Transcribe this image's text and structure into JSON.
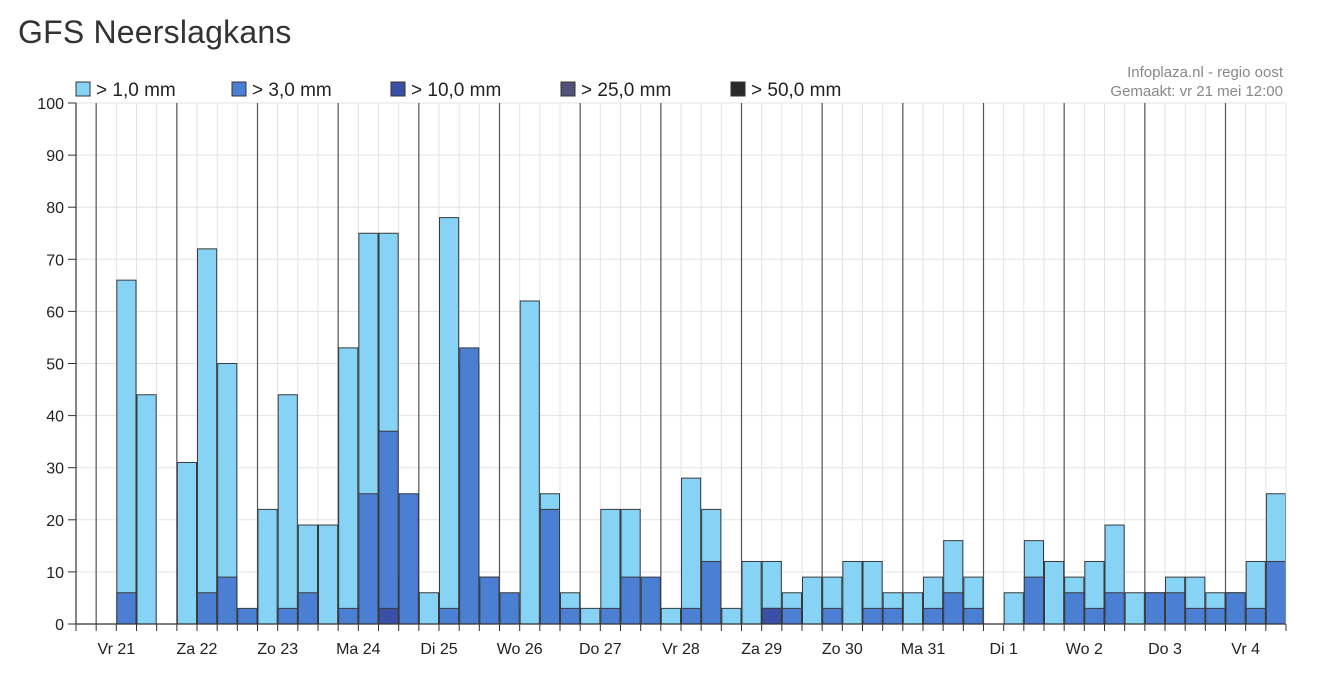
{
  "header": {
    "title": "GFS Neerslagkans"
  },
  "credits": {
    "line1": "Infoplaza.nl - regio oost",
    "line2": "Gemaakt: vr 21 mei 12:00"
  },
  "chart_data": {
    "type": "bar",
    "title": "GFS Neerslagkans",
    "ylim": [
      0,
      100
    ],
    "yticks": [
      0,
      10,
      20,
      30,
      40,
      50,
      60,
      70,
      80,
      90,
      100
    ],
    "grid": true,
    "legend_position": "top",
    "days": [
      "Vr 21",
      "Za 22",
      "Zo 23",
      "Ma 24",
      "Di 25",
      "Wo 26",
      "Do 27",
      "Vr 28",
      "Za 29",
      "Zo 30",
      "Ma 31",
      "Di 1",
      "Wo 2",
      "Do 3",
      "Vr 4"
    ],
    "series": [
      {
        "name": "> 1,0 mm",
        "color": "#87d3f5",
        "values": [
          0,
          66,
          44,
          0,
          31,
          72,
          50,
          0,
          22,
          44,
          19,
          19,
          53,
          75,
          75,
          9,
          6,
          78,
          50,
          9,
          3,
          62,
          25,
          6,
          3,
          22,
          22,
          0,
          3,
          28,
          22,
          3,
          12,
          12,
          6,
          9,
          9,
          12,
          12,
          6,
          6,
          9,
          16,
          9,
          0,
          6,
          16,
          12,
          9,
          12,
          19,
          6,
          6,
          9,
          9,
          6,
          6,
          12,
          25
        ]
      },
      {
        "name": "> 3,0 mm",
        "color": "#4b7fd4",
        "values": [
          0,
          6,
          0,
          0,
          0,
          6,
          9,
          3,
          0,
          3,
          6,
          0,
          3,
          25,
          37,
          25,
          0,
          3,
          53,
          9,
          6,
          0,
          22,
          3,
          0,
          3,
          9,
          9,
          0,
          3,
          12,
          0,
          0,
          3,
          3,
          0,
          3,
          0,
          3,
          3,
          0,
          3,
          6,
          3,
          0,
          0,
          9,
          0,
          6,
          3,
          6,
          0,
          6,
          6,
          3,
          3,
          6,
          3,
          12
        ]
      },
      {
        "name": "> 10,0 mm",
        "color": "#3a4fa6",
        "values": [
          0,
          0,
          0,
          0,
          0,
          0,
          0,
          0,
          0,
          0,
          0,
          0,
          0,
          0,
          3,
          0,
          0,
          0,
          0,
          0,
          0,
          0,
          0,
          0,
          0,
          0,
          0,
          0,
          0,
          0,
          0,
          0,
          0,
          3,
          0,
          0,
          0,
          0,
          0,
          0,
          0,
          0,
          0,
          0,
          0,
          0,
          0,
          0,
          0,
          0,
          0,
          0,
          0,
          0,
          0,
          0,
          0,
          0,
          0
        ]
      },
      {
        "name": "> 25,0 mm",
        "color": "#51517a",
        "values": []
      },
      {
        "name": "> 50,0 mm",
        "color": "#2a2a2a",
        "values": []
      }
    ]
  }
}
